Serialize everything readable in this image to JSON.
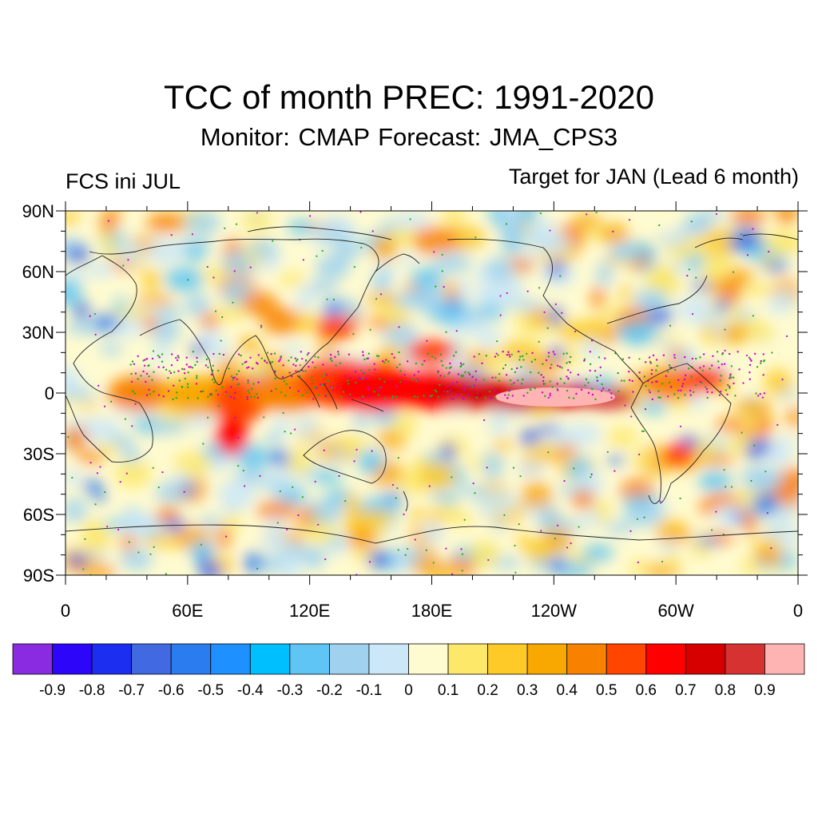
{
  "header": {
    "title": "TCC of month PREC: 1991-2020",
    "subtitle": "Monitor: CMAP   Forecast: JMA_CPS3",
    "left_label": "FCS ini JUL",
    "right_label": "Target for JAN (Lead 6 month)"
  },
  "map": {
    "y_ticks": [
      "90N",
      "60N",
      "30N",
      "0",
      "30S",
      "60S",
      "90S"
    ],
    "x_ticks": [
      "0",
      "60E",
      "120E",
      "180E",
      "120W",
      "60W",
      "0"
    ]
  },
  "colorbar": {
    "colors": [
      "#8a2be2",
      "#2d05f8",
      "#1c2ff0",
      "#4169e1",
      "#2b7def",
      "#1e90ff",
      "#00bfff",
      "#5ec5f5",
      "#a0d2f0",
      "#cce8f8",
      "#fffbd0",
      "#fde86a",
      "#fdca27",
      "#f8a800",
      "#f88200",
      "#ff4500",
      "#ff0000",
      "#d60000",
      "#d63232",
      "#ffb4b4"
    ],
    "labels": [
      "-0.9",
      "-0.8",
      "-0.7",
      "-0.6",
      "-0.5",
      "-0.4",
      "-0.3",
      "-0.2",
      "-0.1",
      "0",
      "0.1",
      "0.2",
      "0.3",
      "0.4",
      "0.5",
      "0.6",
      "0.7",
      "0.8",
      "0.9"
    ]
  }
}
